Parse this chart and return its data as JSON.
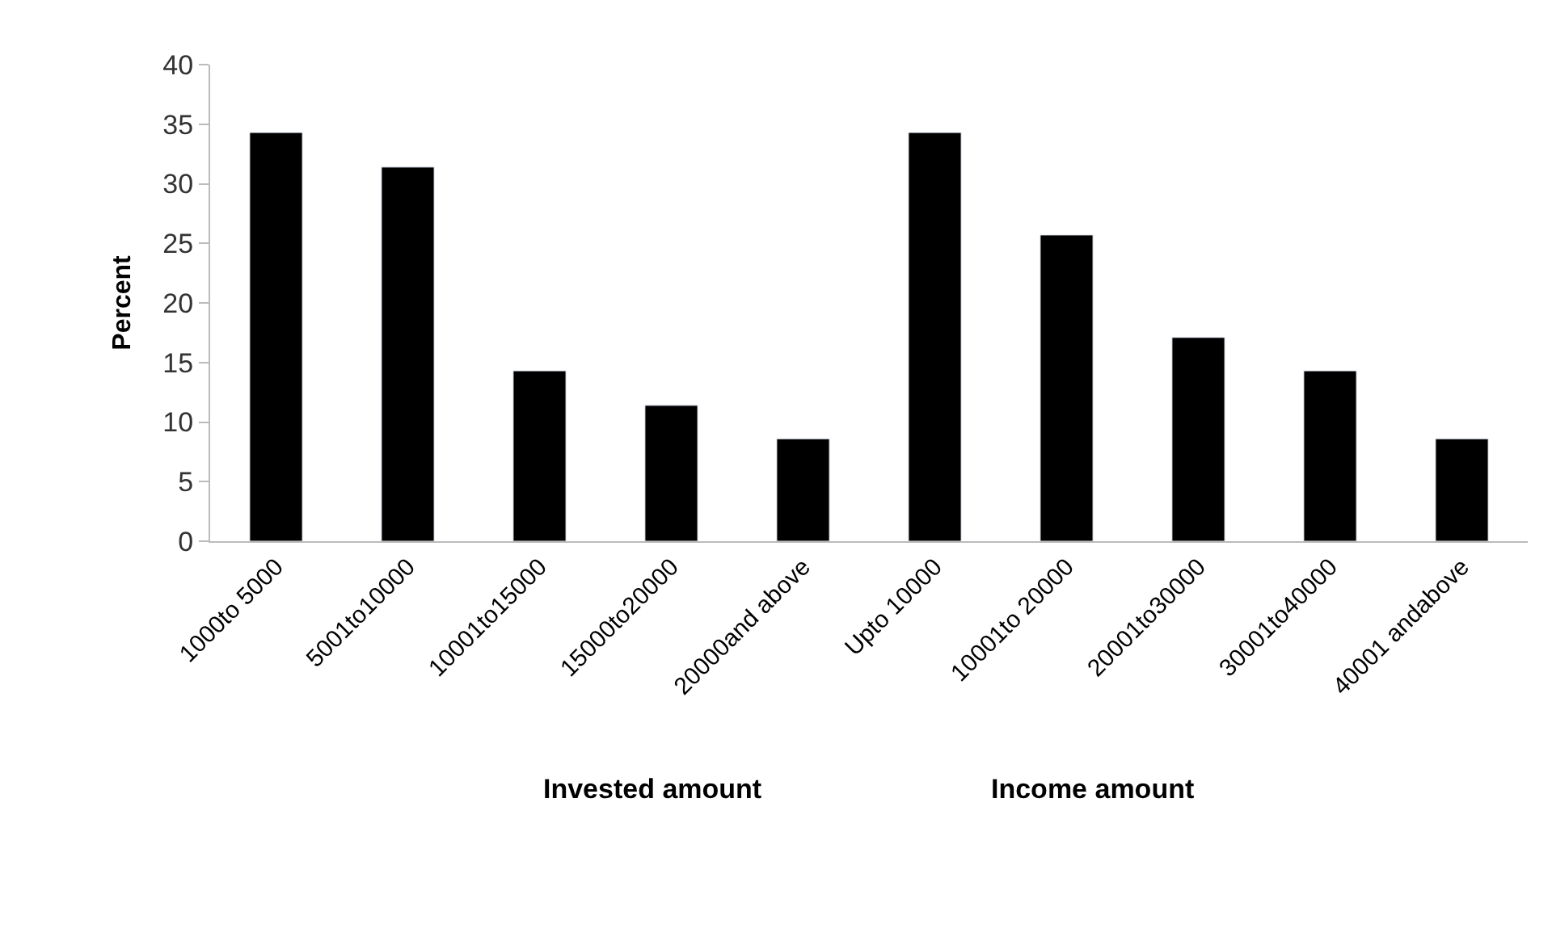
{
  "chart_data": {
    "type": "bar",
    "ylabel": "Percent",
    "categories": [
      "1000to 5000",
      "5001to10000",
      "10001to15000",
      "15000to20000",
      "20000and above",
      "Upto 10000",
      "10001to 20000",
      "20001to30000",
      "30001to40000",
      "40001 andabove"
    ],
    "values": [
      34.3,
      31.4,
      14.3,
      11.4,
      8.6,
      34.3,
      25.7,
      17.1,
      14.3,
      8.6
    ],
    "color": "#000000",
    "ylim": [
      0,
      40
    ],
    "yticks": [
      0,
      5,
      10,
      15,
      20,
      25,
      30,
      35,
      40
    ],
    "legend": false,
    "annotations": [
      "Invested amount",
      "Income amount"
    ]
  }
}
